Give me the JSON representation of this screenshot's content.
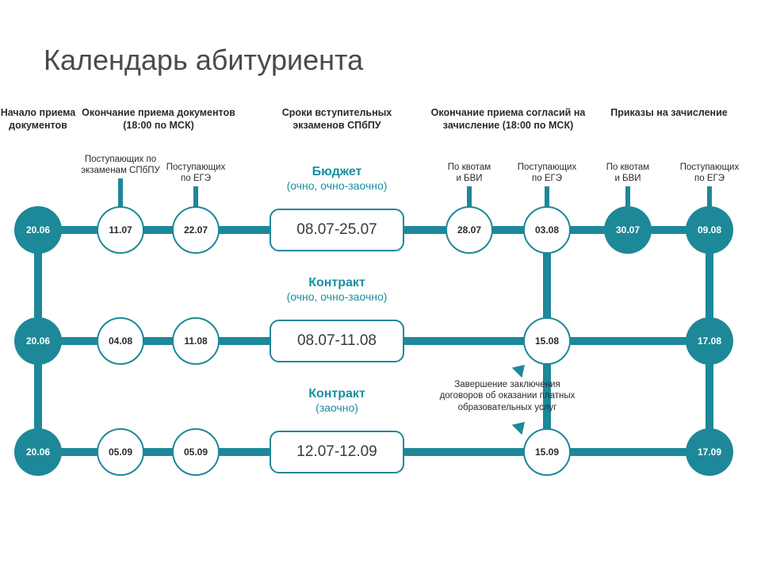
{
  "title": "Календарь абитуриента",
  "accent": "#1d8898",
  "background": "#ffffff",
  "layout": {
    "cols": {
      "c1": 48,
      "c2": 152,
      "c3": 247,
      "c4": 425,
      "c5": 592,
      "c6": 690,
      "c7": 792,
      "c8": 895
    },
    "rows": {
      "r1": 290,
      "r2": 430,
      "r3": 570
    },
    "node_diameter": 60,
    "pill_w": 170,
    "pill_h": 54,
    "line_thickness": 10
  },
  "column_headers": {
    "c1": "Начало приема документов",
    "c2_3": "Окончание приема документов\n(18:00 по МСК)",
    "c4": "Сроки вступительных\nэкзаменов СПбПУ",
    "c5_6": "Окончание приема согласий на\nзачисление (18:00 по МСК)",
    "c7_8": "Приказы на зачисление"
  },
  "sub_labels": {
    "c2": "Поступающих по\nэкзаменам СПбПУ",
    "c3": "Поступающих\nпо ЕГЭ",
    "c5": "По квотам\nи БВИ",
    "c6": "Поступающих\nпо ЕГЭ",
    "c7": "По квотам\nи БВИ",
    "c8": "Поступающих\nпо ЕГЭ"
  },
  "row_titles": {
    "r1": {
      "title": "Бюджет",
      "subtitle": "(очно, очно-заочно)"
    },
    "r2": {
      "title": "Контракт",
      "subtitle": "(очно, очно-заочно)"
    },
    "r3": {
      "title": "Контракт",
      "subtitle": "(заочно)"
    }
  },
  "nodes": {
    "r1": [
      {
        "col": "c1",
        "label": "20.06",
        "style": "solid"
      },
      {
        "col": "c2",
        "label": "11.07",
        "style": "outline"
      },
      {
        "col": "c3",
        "label": "22.07",
        "style": "outline"
      },
      {
        "col": "c5",
        "label": "28.07",
        "style": "outline"
      },
      {
        "col": "c6",
        "label": "03.08",
        "style": "outline"
      },
      {
        "col": "c7",
        "label": "30.07",
        "style": "solid"
      },
      {
        "col": "c8",
        "label": "09.08",
        "style": "solid"
      }
    ],
    "r2": [
      {
        "col": "c1",
        "label": "20.06",
        "style": "solid"
      },
      {
        "col": "c2",
        "label": "04.08",
        "style": "outline"
      },
      {
        "col": "c3",
        "label": "11.08",
        "style": "outline"
      },
      {
        "col": "c6",
        "label": "15.08",
        "style": "outline"
      },
      {
        "col": "c8",
        "label": "17.08",
        "style": "solid"
      }
    ],
    "r3": [
      {
        "col": "c1",
        "label": "20.06",
        "style": "solid"
      },
      {
        "col": "c2",
        "label": "05.09",
        "style": "outline"
      },
      {
        "col": "c3",
        "label": "05.09",
        "style": "outline"
      },
      {
        "col": "c6",
        "label": "15.09",
        "style": "outline"
      },
      {
        "col": "c8",
        "label": "17.09",
        "style": "solid"
      }
    ]
  },
  "pills": {
    "r1": "08.07-25.07",
    "r2": "08.07-11.08",
    "r3": "12.07-12.09"
  },
  "note": "Завершение заключения\nдоговоров об оказании платных\nобразовательных услуг"
}
